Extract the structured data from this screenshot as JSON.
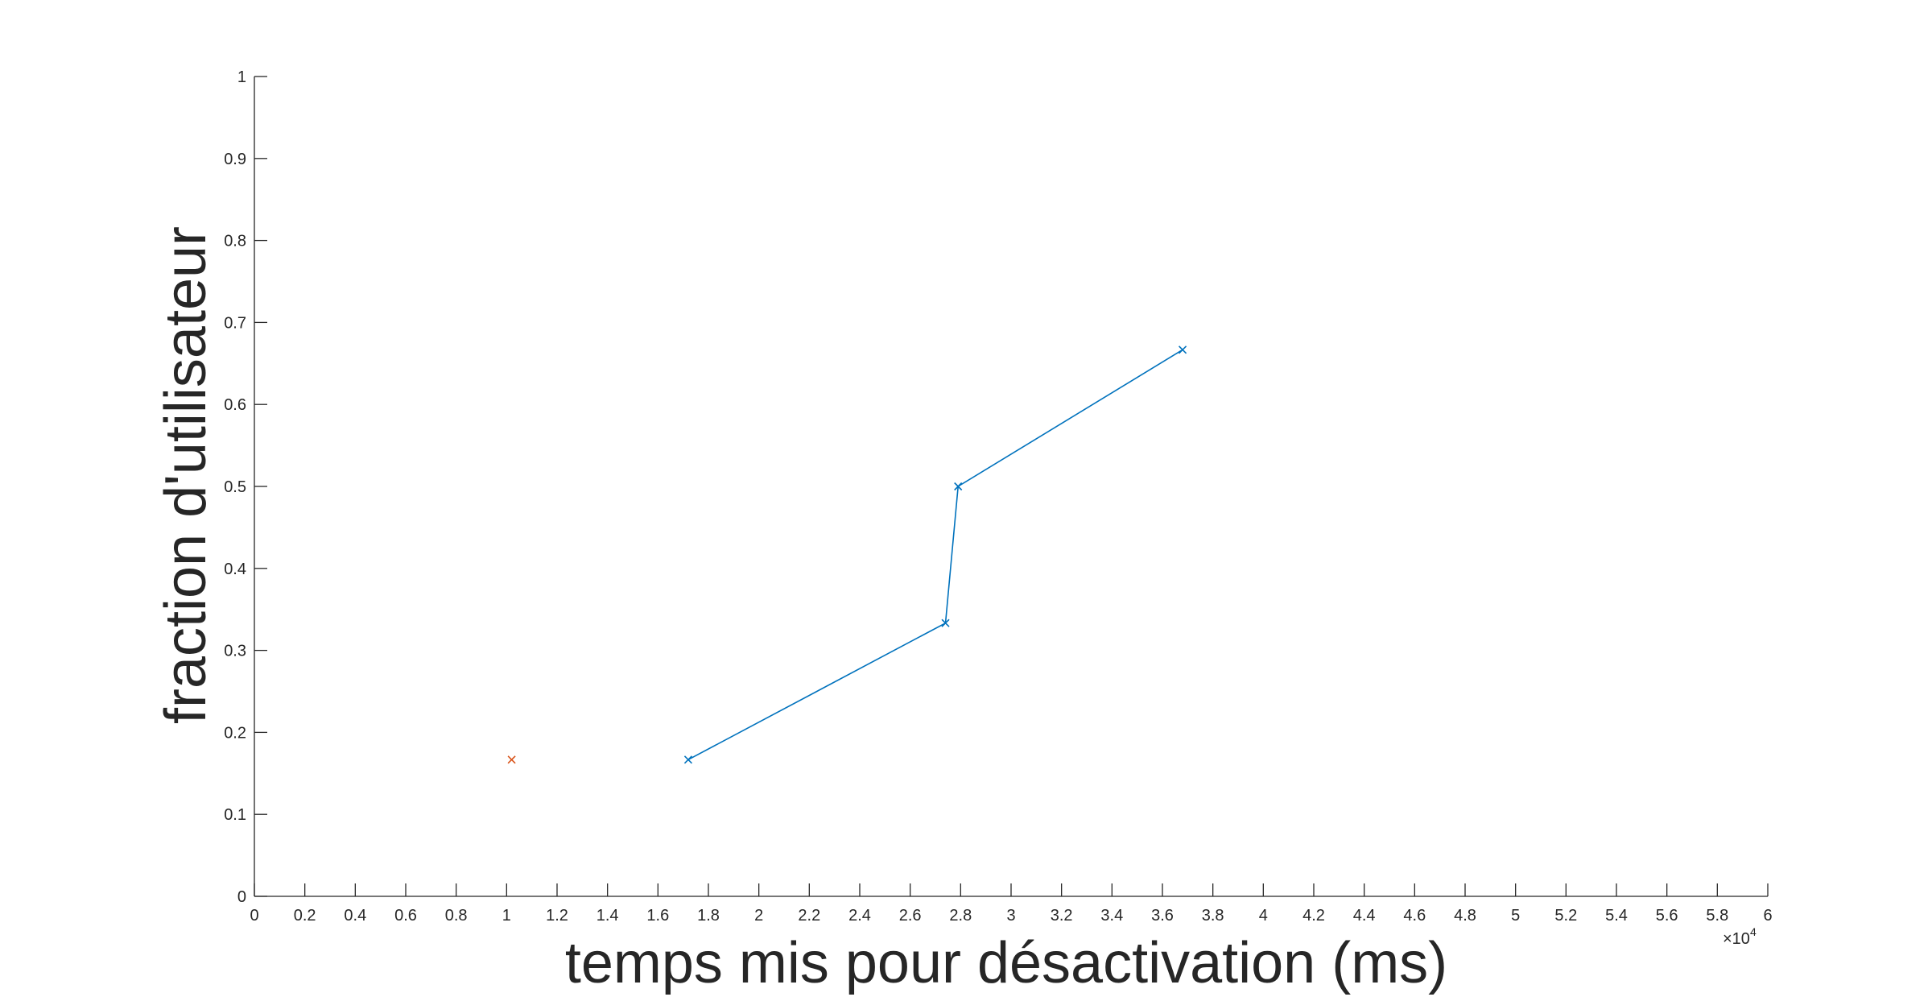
{
  "chart_data": {
    "type": "line",
    "title": "",
    "xlabel": "temps mis pour désactivation (ms)",
    "ylabel": "fraction d'utilisateur",
    "x_exponent_label": "×10",
    "x_exponent_power": "4",
    "xlim": [
      0,
      6
    ],
    "ylim": [
      0,
      1
    ],
    "x_ticks": [
      "0",
      "0.2",
      "0.4",
      "0.6",
      "0.8",
      "1",
      "1.2",
      "1.4",
      "1.6",
      "1.8",
      "2",
      "2.2",
      "2.4",
      "2.6",
      "2.8",
      "3",
      "3.2",
      "3.4",
      "3.6",
      "3.8",
      "4",
      "4.2",
      "4.4",
      "4.6",
      "4.8",
      "5",
      "5.2",
      "5.4",
      "5.6",
      "5.8",
      "6"
    ],
    "y_ticks": [
      "0",
      "0.1",
      "0.2",
      "0.3",
      "0.4",
      "0.5",
      "0.6",
      "0.7",
      "0.8",
      "0.9",
      "1"
    ],
    "grid": false,
    "series": [
      {
        "color": "#0072BD",
        "marker": "x",
        "line": true,
        "x": [
          1.72,
          2.74,
          2.79,
          3.68
        ],
        "y": [
          0.1667,
          0.3333,
          0.5,
          0.6667
        ]
      },
      {
        "color": "#D95319",
        "marker": "x",
        "line": false,
        "x": [
          1.02
        ],
        "y": [
          0.1667
        ]
      }
    ]
  }
}
